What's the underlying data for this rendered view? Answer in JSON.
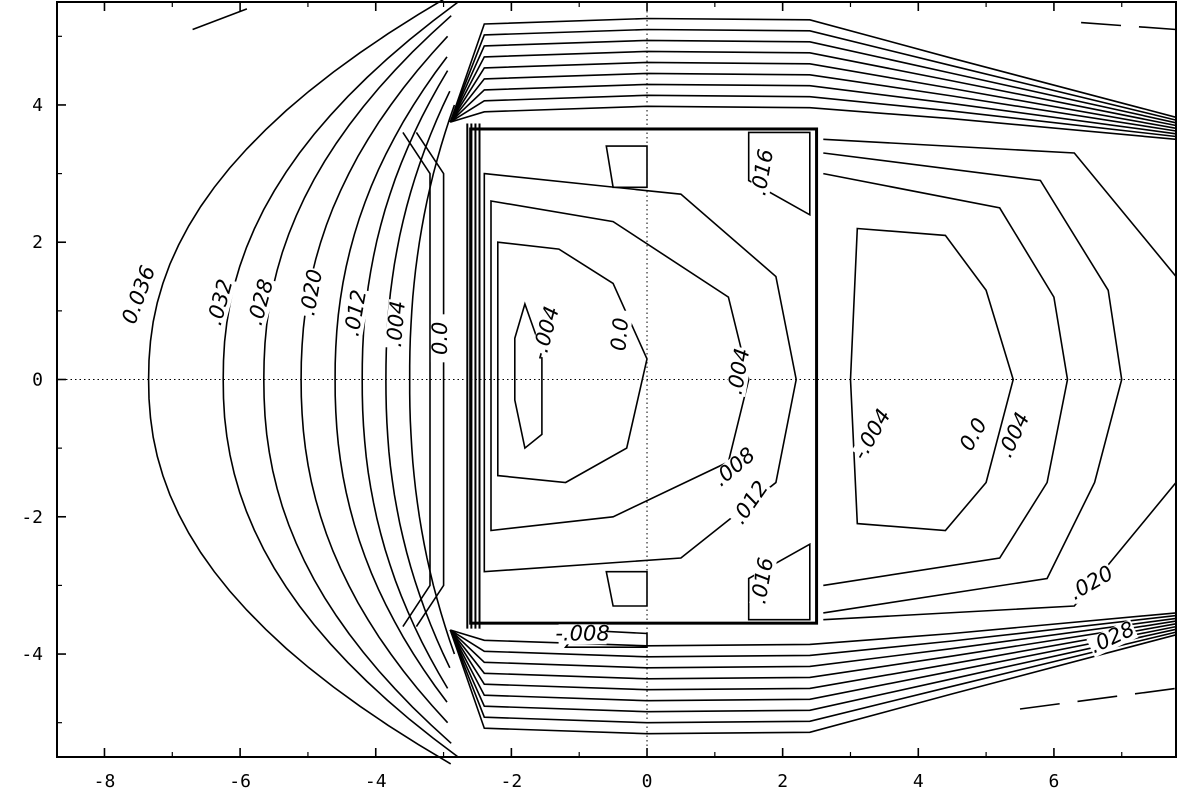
{
  "chart_data": {
    "type": "contour",
    "title": "",
    "xlabel": "",
    "ylabel": "",
    "xlim": [
      -8.7,
      7.8
    ],
    "ylim": [
      -5.5,
      5.5
    ],
    "x_ticks": [
      -8,
      -6,
      -4,
      -2,
      0,
      2,
      4,
      6
    ],
    "x_tick_labels": [
      "-8",
      "-6",
      "-4",
      "-2",
      "0",
      "2",
      "4",
      "6"
    ],
    "y_ticks": [
      4,
      2,
      0,
      -2,
      -4
    ],
    "y_tick_labels": [
      "4",
      "2",
      "0",
      "-2",
      "-4"
    ],
    "reference_lines": {
      "x": 0,
      "y": 0,
      "style": "dotted"
    },
    "body_rectangle": {
      "x_min": -2.6,
      "x_max": 2.5,
      "y_min": -3.55,
      "y_max": 3.65
    },
    "contour_levels": [
      -0.008,
      -0.004,
      0.0,
      0.004,
      0.008,
      0.012,
      0.016,
      0.02,
      0.028,
      0.032,
      0.036
    ],
    "contour_labels": [
      {
        "text": "0.036",
        "x": -7.4,
        "y": 1.2,
        "angle": -70
      },
      {
        "text": ".032",
        "x": -6.2,
        "y": 1.1,
        "angle": -75
      },
      {
        "text": ".028",
        "x": -5.6,
        "y": 1.1,
        "angle": -75
      },
      {
        "text": ".020",
        "x": -4.85,
        "y": 1.25,
        "angle": -80
      },
      {
        "text": ".012",
        "x": -4.2,
        "y": 0.95,
        "angle": -80
      },
      {
        "text": ".004",
        "x": -3.6,
        "y": 0.8,
        "angle": -85
      },
      {
        "text": "0.0",
        "x": -2.95,
        "y": 0.6,
        "angle": -90
      },
      {
        "text": "-.004",
        "x": -1.4,
        "y": 0.65,
        "angle": -75
      },
      {
        "text": "0.0",
        "x": -0.3,
        "y": 0.65,
        "angle": -85
      },
      {
        "text": ".004",
        "x": 1.45,
        "y": 0.1,
        "angle": -80
      },
      {
        "text": "-.004",
        "x": 3.4,
        "y": -0.85,
        "angle": -60
      },
      {
        "text": "0.0",
        "x": 4.9,
        "y": -0.85,
        "angle": -60
      },
      {
        "text": ".004",
        "x": 5.5,
        "y": -0.85,
        "angle": -65
      },
      {
        "text": ".008",
        "x": 1.35,
        "y": -1.35,
        "angle": -40
      },
      {
        "text": ".012",
        "x": 1.6,
        "y": -1.85,
        "angle": -55
      },
      {
        "text": ".016",
        "x": 1.8,
        "y": 3.0,
        "angle": -80
      },
      {
        "text": ".016",
        "x": 1.8,
        "y": -2.95,
        "angle": -80
      },
      {
        "text": "-.008",
        "x": -0.95,
        "y": -3.8,
        "angle": 0
      },
      {
        "text": ".020",
        "x": 6.6,
        "y": -3.05,
        "angle": -30
      },
      {
        "text": ".028",
        "x": 6.9,
        "y": -3.85,
        "angle": -25
      }
    ]
  }
}
